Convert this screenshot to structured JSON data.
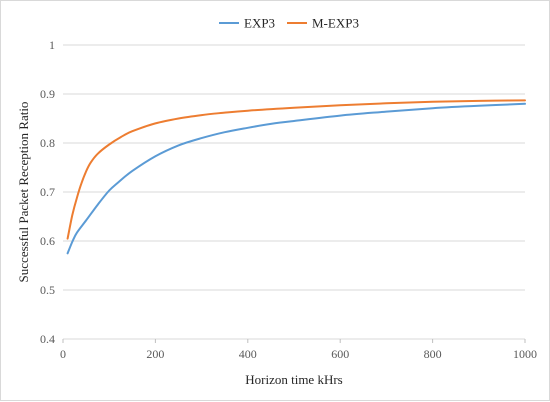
{
  "chart_data": {
    "type": "line",
    "xlabel": "Horizon time  kHrs",
    "ylabel": "Successful Packet Reception Ratio",
    "xlim": [
      0,
      1000
    ],
    "ylim": [
      0.4,
      1
    ],
    "x_ticks": [
      "0",
      "200",
      "400",
      "600",
      "800",
      "1000"
    ],
    "y_ticks": [
      "0.4",
      "0.5",
      "0.6",
      "0.7",
      "0.8",
      "0.9",
      "1"
    ],
    "grid": "horizontal",
    "legend_position": "top",
    "series": [
      {
        "name": "EXP3",
        "color": "#5B9BD5",
        "x": [
          10,
          20,
          30,
          50,
          75,
          100,
          120,
          150,
          200,
          250,
          300,
          350,
          400,
          450,
          500,
          600,
          700,
          800,
          900,
          1000
        ],
        "y": [
          0.575,
          0.598,
          0.617,
          0.642,
          0.674,
          0.703,
          0.72,
          0.743,
          0.773,
          0.795,
          0.81,
          0.822,
          0.831,
          0.839,
          0.845,
          0.856,
          0.864,
          0.871,
          0.876,
          0.88
        ]
      },
      {
        "name": "M-EXP3",
        "color": "#ED7D31",
        "x": [
          10,
          20,
          30,
          40,
          50,
          60,
          75,
          100,
          125,
          150,
          200,
          250,
          300,
          350,
          400,
          500,
          600,
          700,
          800,
          900,
          1000
        ],
        "y": [
          0.605,
          0.652,
          0.688,
          0.718,
          0.742,
          0.76,
          0.778,
          0.797,
          0.812,
          0.824,
          0.84,
          0.85,
          0.857,
          0.862,
          0.866,
          0.872,
          0.877,
          0.881,
          0.884,
          0.886,
          0.887
        ]
      }
    ]
  }
}
